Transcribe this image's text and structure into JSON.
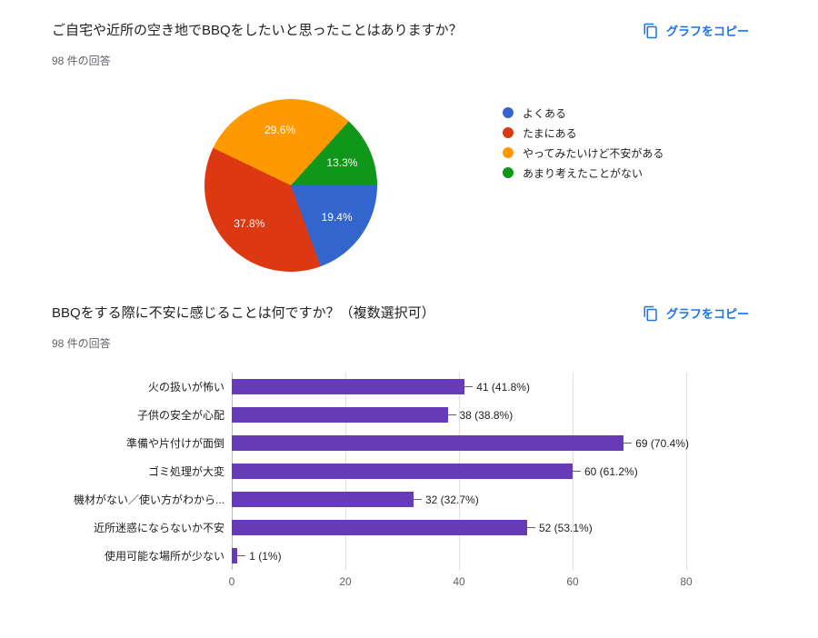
{
  "copy_button": {
    "label": "グラフをコピー",
    "color": "#1a73e8"
  },
  "icons": {
    "copy": "copy-icon"
  },
  "colors": {
    "link_blue": "#1a73e8",
    "grid": "#e0e0e0"
  },
  "chart_data": [
    {
      "type": "pie",
      "title": "ご自宅や近所の空き地でBBQをしたいと思ったことはありますか？",
      "response_count": "98 件の回答",
      "labels": [
        "よくある",
        "たまにある",
        "やってみたいけど不安がある",
        "あまり考えたことがない"
      ],
      "values_percent": [
        19.4,
        37.8,
        29.6,
        13.3
      ],
      "slice_labels": [
        "19.4%",
        "37.8%",
        "29.6%",
        "13.3%"
      ],
      "colors": [
        "#3366cc",
        "#dc3912",
        "#ff9900",
        "#109618"
      ],
      "start_angle_deg": 90,
      "legend_position": "right"
    },
    {
      "type": "bar",
      "orientation": "horizontal",
      "title": "BBQをする際に不安に感じることは何ですか？（複数選択可）",
      "response_count": "98 件の回答",
      "categories": [
        "火の扱いが怖い",
        "子供の安全が心配",
        "準備や片付けが面倒",
        "ゴミ処理が大変",
        "機材がない／使い方がわから...",
        "近所迷惑にならないか不安",
        "使用可能な場所が少ない"
      ],
      "values": [
        41,
        38,
        69,
        60,
        32,
        52,
        1
      ],
      "value_labels": [
        "41 (41.8%)",
        "38 (38.8%)",
        "69 (70.4%)",
        "60 (61.2%)",
        "32 (32.7%)",
        "52 (53.1%)",
        "1 (1%)"
      ],
      "bar_color": "#673ab7",
      "x_ticks": [
        0,
        20,
        40,
        60,
        80
      ],
      "xlim": [
        0,
        80
      ],
      "grid": true
    }
  ]
}
